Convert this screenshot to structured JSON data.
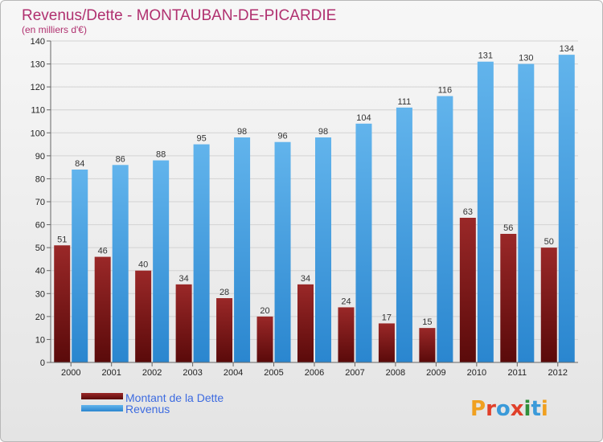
{
  "title": "Revenus/Dette - MONTAUBAN-DE-PICARDIE",
  "subtitle": "(en milliers d'€)",
  "brand": "Proxiti",
  "colors": {
    "dette_dark": "#5a0a0a",
    "dette_light": "#9a2828",
    "revenus_light": "#62b4ec",
    "revenus_dark": "#2a86cf"
  },
  "chart_data": {
    "type": "bar",
    "categories": [
      "2000",
      "2001",
      "2002",
      "2003",
      "2004",
      "2005",
      "2006",
      "2007",
      "2008",
      "2009",
      "2010",
      "2011",
      "2012"
    ],
    "series": [
      {
        "name": "Montant de la Dette",
        "values": [
          51,
          46,
          40,
          34,
          28,
          20,
          34,
          24,
          17,
          15,
          63,
          56,
          50
        ]
      },
      {
        "name": "Revenus",
        "values": [
          84,
          86,
          88,
          95,
          98,
          96,
          98,
          104,
          111,
          116,
          131,
          130,
          134
        ]
      }
    ],
    "yticks": [
      0,
      10,
      20,
      30,
      40,
      50,
      60,
      70,
      80,
      90,
      100,
      110,
      120,
      130,
      140
    ],
    "ylim": [
      0,
      140
    ],
    "grid": true,
    "legend": "bottom-left"
  }
}
